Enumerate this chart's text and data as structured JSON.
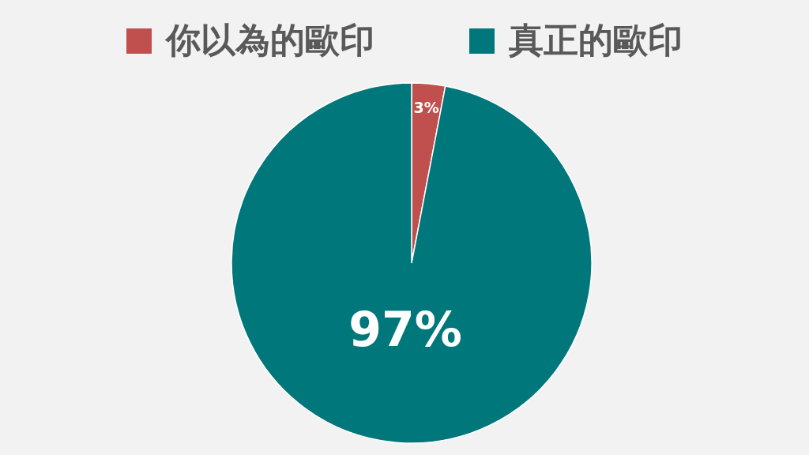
{
  "chart_data": {
    "type": "pie",
    "categories": [
      "你以為的歐印",
      "真正的歐印"
    ],
    "values": [
      3,
      97
    ],
    "colors": [
      "#c0504d",
      "#00777b"
    ],
    "value_labels": [
      "3%",
      "97%"
    ],
    "legend": "top"
  }
}
